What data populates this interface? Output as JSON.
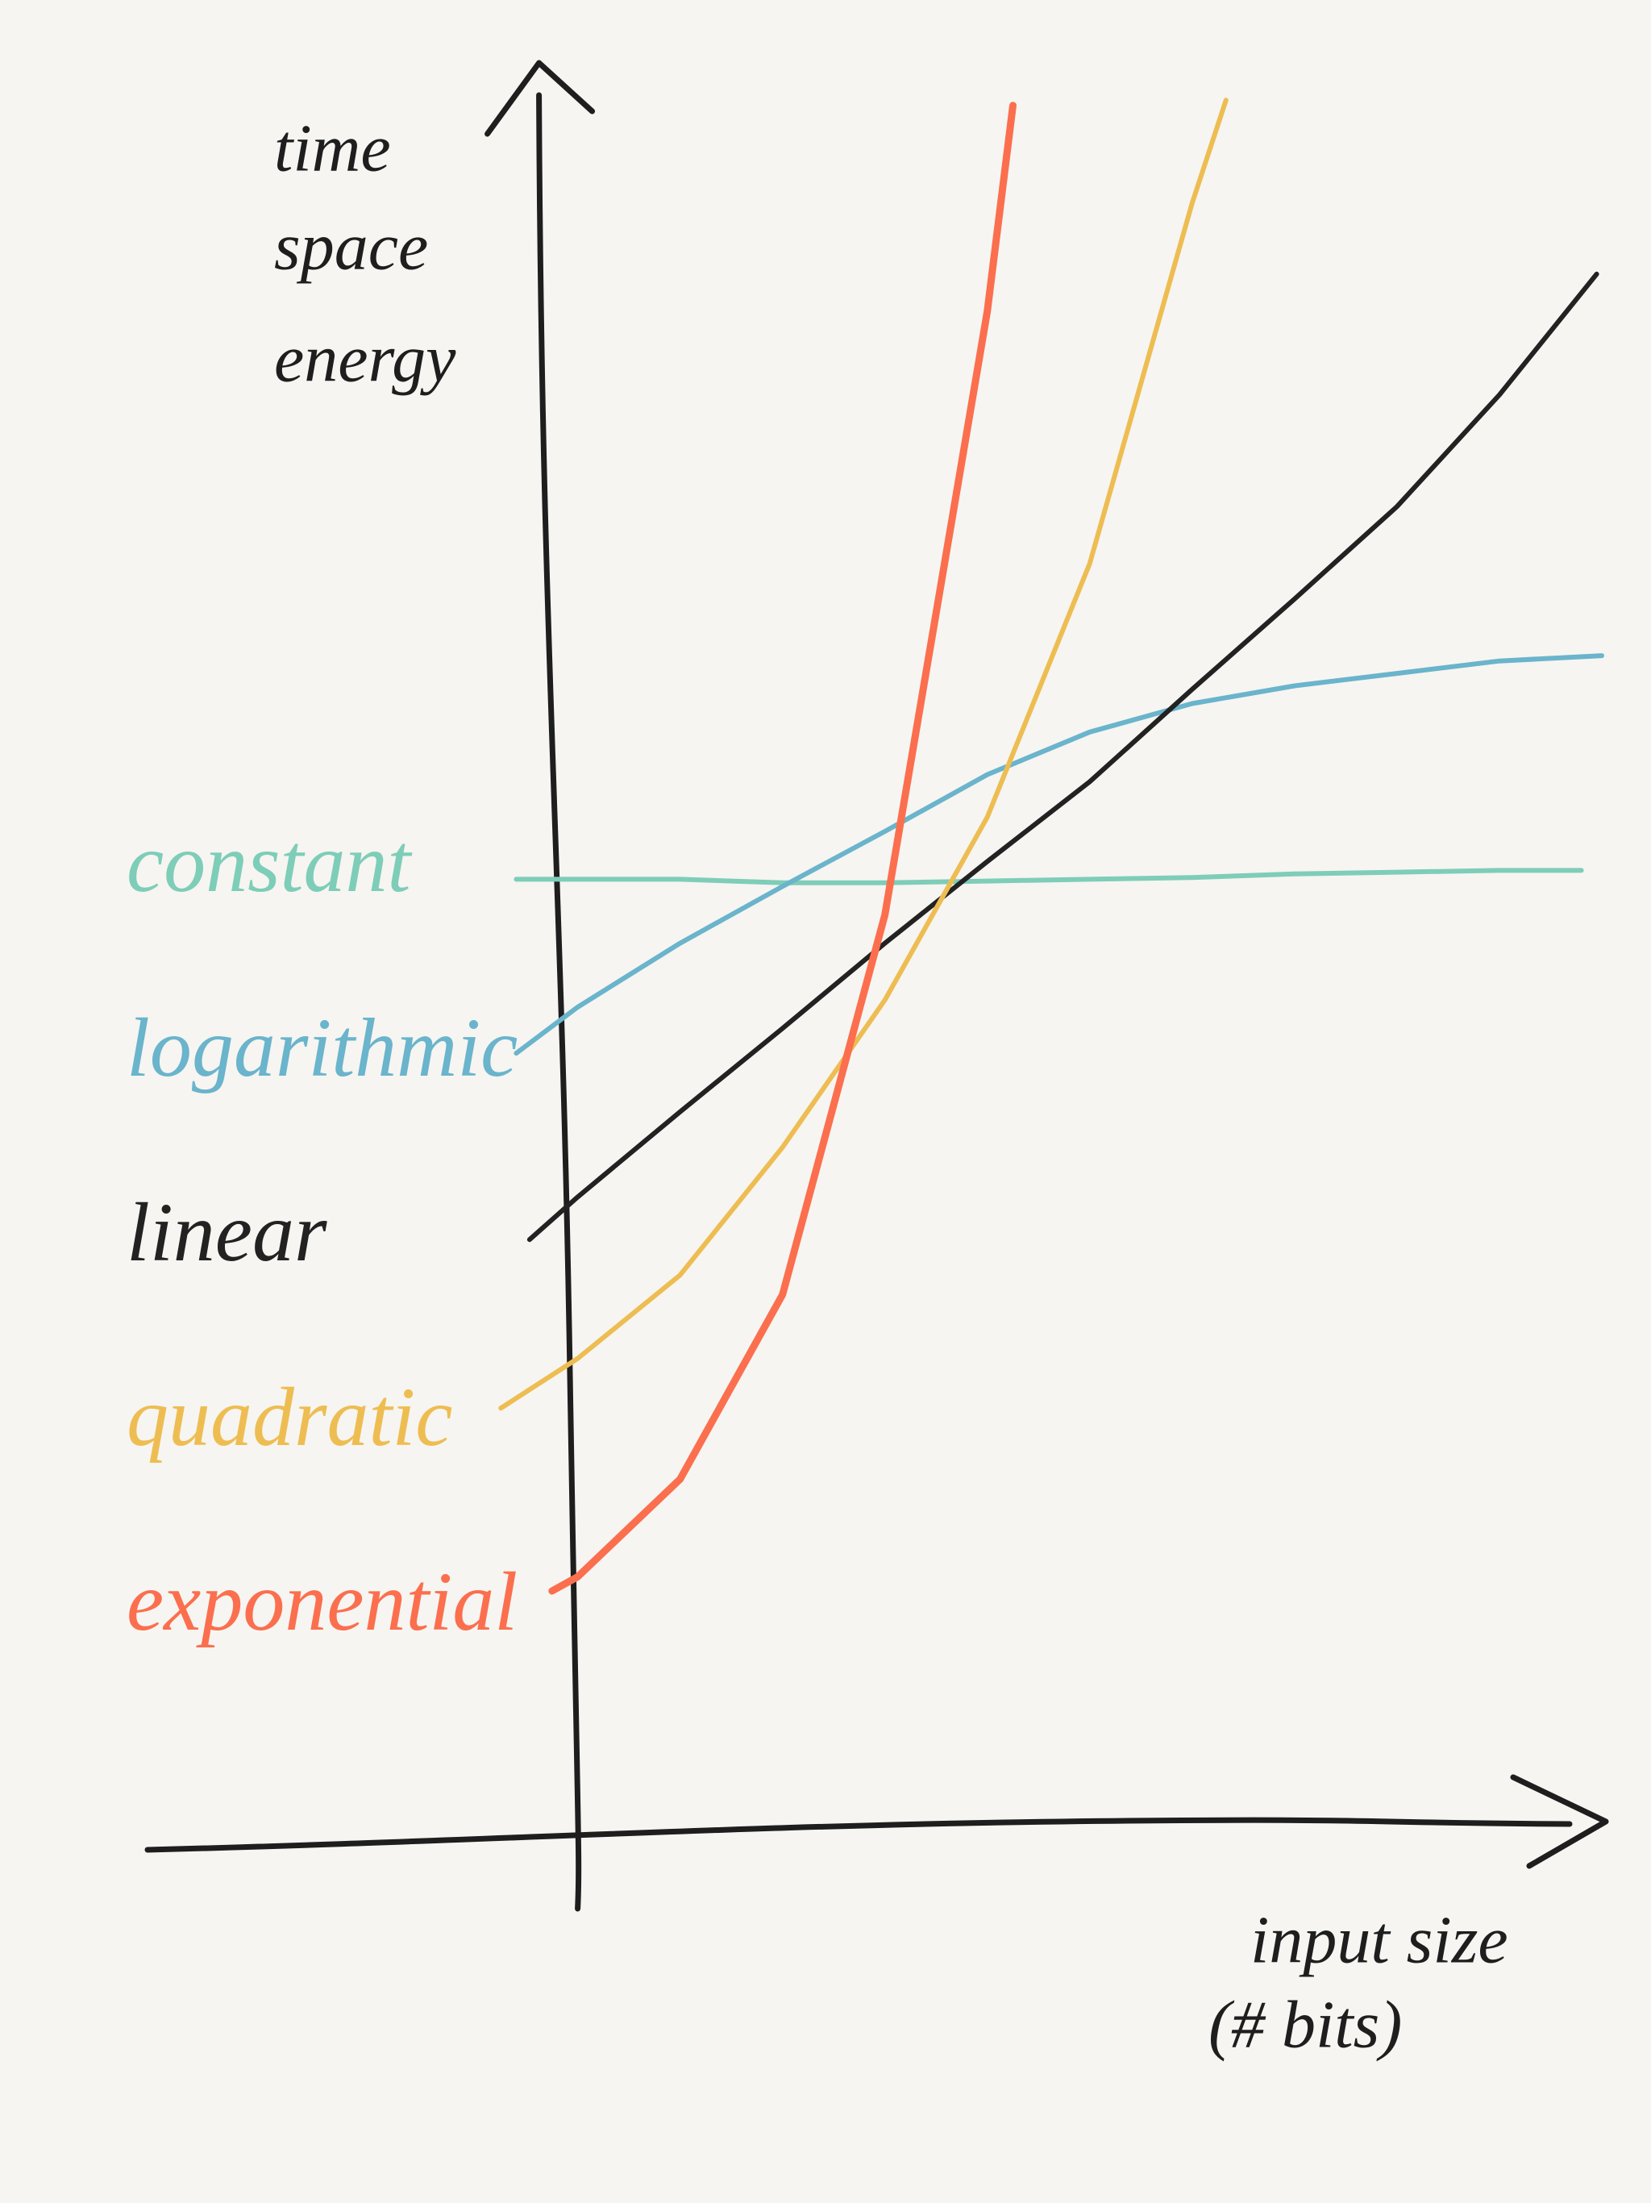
{
  "chart_data": {
    "type": "line",
    "y_label": [
      "time",
      "space",
      "energy"
    ],
    "x_label": [
      "input size",
      "(# bits)"
    ],
    "xlim": [
      -4.2,
      10
    ],
    "ylim": [
      -0.4,
      10
    ],
    "series": [
      {
        "name": "constant",
        "color": "#7ecdb8",
        "x": [
          -0.6,
          0,
          1,
          2,
          3,
          4,
          5,
          6,
          7,
          8,
          9,
          9.8
        ],
        "values": [
          5.4,
          5.4,
          5.4,
          5.38,
          5.38,
          5.39,
          5.4,
          5.41,
          5.43,
          5.44,
          5.45,
          5.45
        ]
      },
      {
        "name": "logarithmic",
        "color": "#6ab4cc",
        "x": [
          -0.6,
          0,
          1,
          2,
          3,
          4,
          5,
          6,
          7,
          8,
          9,
          10
        ],
        "values": [
          4.42,
          4.68,
          5.04,
          5.36,
          5.67,
          5.99,
          6.23,
          6.39,
          6.49,
          6.56,
          6.63,
          6.66
        ]
      },
      {
        "name": "linear",
        "color": "#222222",
        "x": [
          -0.47,
          0,
          1,
          2,
          3,
          4,
          5,
          6,
          7,
          8,
          9,
          9.95
        ],
        "values": [
          3.37,
          3.61,
          4.09,
          4.56,
          5.04,
          5.5,
          5.95,
          6.47,
          6.98,
          7.5,
          8.13,
          8.81
        ]
      },
      {
        "name": "quadratic",
        "color": "#eebd52",
        "x": [
          -0.75,
          0,
          1,
          2,
          3,
          4,
          5,
          6,
          6.33
        ],
        "values": [
          2.42,
          2.7,
          3.17,
          3.89,
          4.72,
          5.75,
          7.18,
          9.21,
          9.79
        ]
      },
      {
        "name": "exponential",
        "color": "#fb6f4e",
        "x": [
          -0.25,
          0,
          1,
          2,
          3,
          4,
          4.25
        ],
        "values": [
          1.39,
          1.47,
          2.02,
          3.06,
          5.2,
          8.6,
          9.76
        ]
      }
    ]
  }
}
